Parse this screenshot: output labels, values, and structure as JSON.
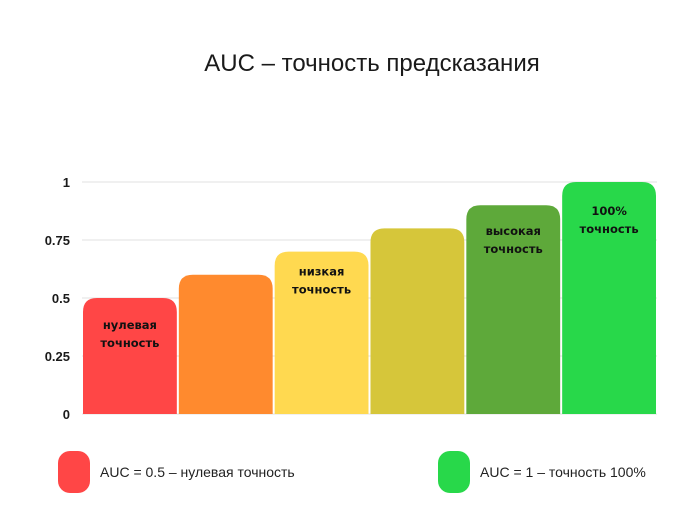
{
  "chart_data": {
    "type": "bar",
    "title": "AUC – точность предсказания",
    "xlabel": "",
    "ylabel": "",
    "ylim": [
      0,
      1
    ],
    "yticks": [
      "0",
      "0.25",
      "0.5",
      "0.75",
      "1"
    ],
    "grid": true,
    "values": [
      0.5,
      0.6,
      0.7,
      0.8,
      0.9,
      1.0
    ],
    "bar_colors": [
      "#ff4646",
      "#ff8a2e",
      "#ffd950",
      "#d6c63a",
      "#5ea93a",
      "#28d84a"
    ],
    "bar_labels": [
      [
        "нулевая",
        "точность"
      ],
      [],
      [
        "низкая",
        "точность"
      ],
      [],
      [
        "высокая",
        "точность"
      ],
      [
        "100%",
        "точность"
      ]
    ],
    "legend": [
      {
        "label": "AUC = 0.5 – нулевая точность",
        "color": "#ff4646"
      },
      {
        "label": "AUC = 1 – точность 100%",
        "color": "#28d84a"
      }
    ]
  }
}
